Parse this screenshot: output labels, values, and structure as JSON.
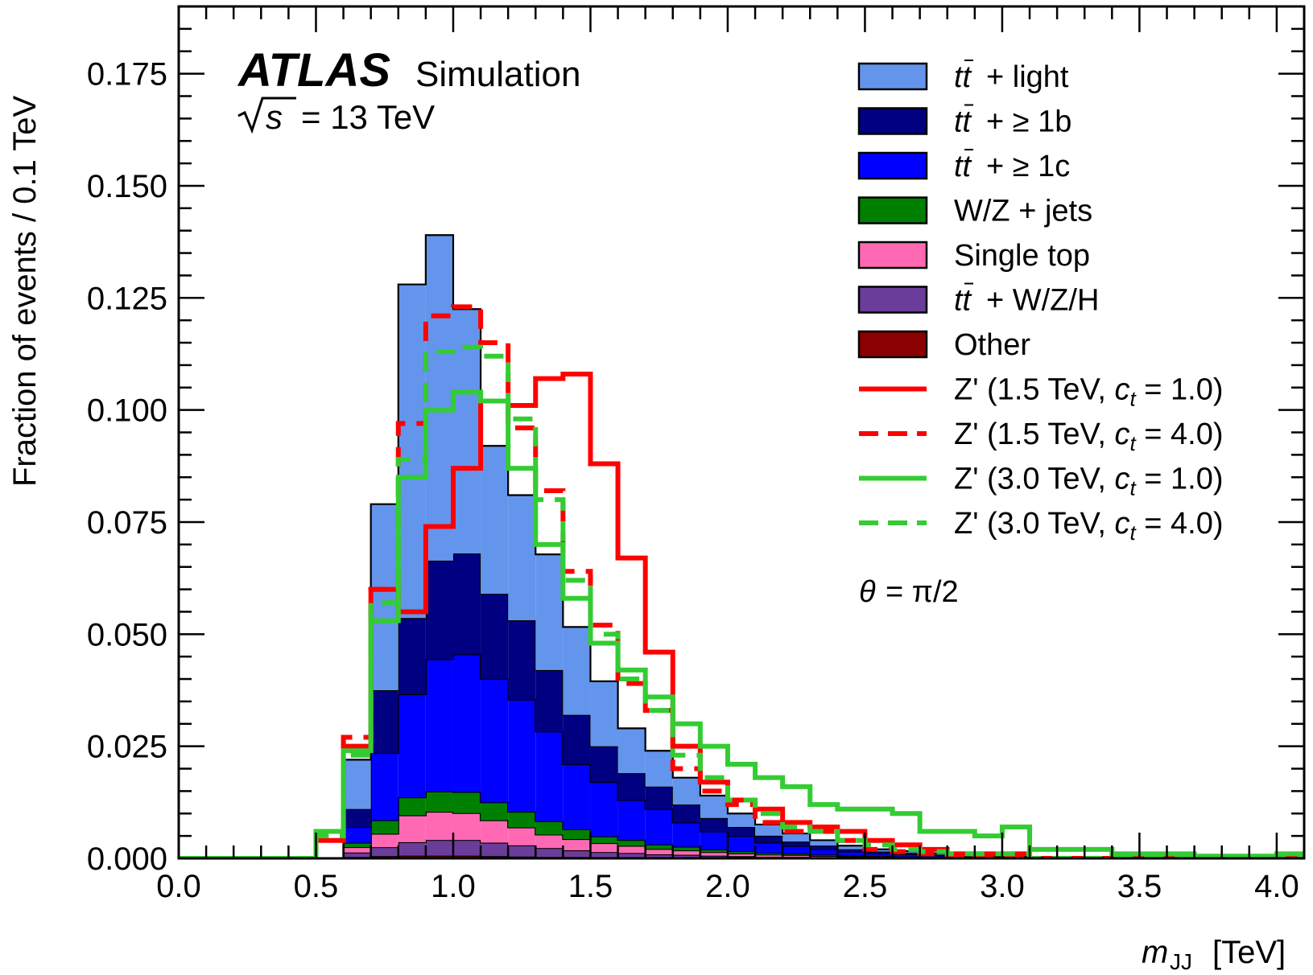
{
  "chart_data": {
    "type": "histogram-stacked",
    "experiment": "ATLAS",
    "experiment_suffix": "Simulation",
    "energy": {
      "s_symbol": "s",
      "text": "= 13 TeV"
    },
    "annotation": {
      "theta": "θ",
      "text": "= π/2"
    },
    "xlabel": {
      "var": "m",
      "sub": "JJ",
      "unit": "[TeV]"
    },
    "ylabel": "Fraction of events / 0.1 TeV",
    "xlim": [
      0.0,
      4.1
    ],
    "ylim": [
      0.0,
      0.19
    ],
    "xticks": [
      0.0,
      0.5,
      1.0,
      1.5,
      2.0,
      2.5,
      3.0,
      3.5,
      4.0
    ],
    "xtick_labels": [
      "0.0",
      "0.5",
      "1.0",
      "1.5",
      "2.0",
      "2.5",
      "3.0",
      "3.5",
      "4.0"
    ],
    "yticks": [
      0.0,
      0.025,
      0.05,
      0.075,
      0.1,
      0.125,
      0.15,
      0.175
    ],
    "ytick_labels": [
      "0.000",
      "0.025",
      "0.050",
      "0.075",
      "0.100",
      "0.125",
      "0.150",
      "0.175"
    ],
    "bin_edges": [
      0.0,
      0.1,
      0.2,
      0.3,
      0.4,
      0.5,
      0.6,
      0.7,
      0.8,
      0.9,
      1.0,
      1.1,
      1.2,
      1.3,
      1.4,
      1.5,
      1.6,
      1.7,
      1.8,
      1.9,
      2.0,
      2.1,
      2.2,
      2.3,
      2.4,
      2.5,
      2.6,
      2.7,
      2.8,
      2.9,
      3.0,
      3.1,
      3.2,
      3.3,
      3.4,
      3.5,
      3.6,
      3.7,
      3.8,
      3.9,
      4.0,
      4.1
    ],
    "stacked_series": [
      {
        "name": "Other",
        "color": "#8b0000",
        "values": [
          0,
          0,
          0,
          0,
          0,
          0,
          0.0003,
          0.0005,
          0.0006,
          0.0006,
          0.0006,
          0.0005,
          0.0004,
          0.0003,
          0.0003,
          0.0002,
          0.0002,
          0.0001,
          0.0001,
          0.0001,
          0.0001,
          5e-05,
          5e-05,
          5e-05,
          3e-05,
          3e-05,
          2e-05,
          2e-05,
          2e-05,
          1e-05,
          1e-05,
          0,
          0,
          0,
          0,
          0,
          0,
          0,
          0,
          0,
          0
        ]
      },
      {
        "name": "t̄t + W/Z/H",
        "color": "#6a3d9a",
        "values": [
          0,
          0,
          0,
          0,
          0,
          0,
          0.001,
          0.002,
          0.003,
          0.0035,
          0.0035,
          0.003,
          0.0025,
          0.002,
          0.0015,
          0.0012,
          0.001,
          0.0008,
          0.0007,
          0.0005,
          0.0004,
          0.0003,
          0.0003,
          0.0002,
          0.0002,
          0.0001,
          0.0001,
          0.0001,
          0.0001,
          0.0001,
          5e-05,
          0,
          0,
          0,
          0,
          0,
          0,
          0,
          0,
          0,
          0
        ]
      },
      {
        "name": "Single top",
        "color": "#ff69b4",
        "values": [
          0,
          0,
          0,
          0,
          0,
          0,
          0.0012,
          0.003,
          0.006,
          0.0063,
          0.006,
          0.005,
          0.004,
          0.003,
          0.0025,
          0.002,
          0.0016,
          0.0012,
          0.001,
          0.0008,
          0.0006,
          0.0005,
          0.0004,
          0.0003,
          0.0002,
          0.0002,
          0.0002,
          0.0001,
          0.0001,
          0.0001,
          5e-05,
          0,
          0,
          0,
          0,
          0,
          0,
          0,
          0,
          0,
          0
        ]
      },
      {
        "name": "W/Z + jets",
        "color": "#008000",
        "values": [
          0,
          0,
          0,
          0,
          0,
          0,
          0.001,
          0.003,
          0.004,
          0.0045,
          0.0047,
          0.004,
          0.0035,
          0.003,
          0.0022,
          0.0015,
          0.0013,
          0.001,
          0.0008,
          0.0006,
          0.0005,
          0.0004,
          0.0003,
          0.0003,
          0.0002,
          0.0002,
          0.0001,
          0.0001,
          0.0001,
          0.0001,
          5e-05,
          0,
          0,
          0,
          0,
          0,
          0,
          0,
          0,
          0,
          0
        ]
      },
      {
        "name": "t̄t + ≥ 1c",
        "color": "#0000ff",
        "values": [
          0,
          0,
          0,
          0,
          0,
          0,
          0.0035,
          0.015,
          0.023,
          0.0295,
          0.0307,
          0.0275,
          0.025,
          0.02,
          0.0145,
          0.0121,
          0.0089,
          0.0079,
          0.0054,
          0.004,
          0.0034,
          0.0023,
          0.0017,
          0.0012,
          0.0009,
          0.0006,
          0.0005,
          0.0003,
          0.0002,
          0.0001,
          0.0001,
          0,
          0,
          0,
          0,
          0,
          0,
          0,
          0,
          0,
          0
        ]
      },
      {
        "name": "t̄t + ≥ 1b",
        "color": "#000080",
        "values": [
          0,
          0,
          0,
          0,
          0,
          0,
          0.004,
          0.014,
          0.017,
          0.022,
          0.0225,
          0.019,
          0.0177,
          0.0137,
          0.011,
          0.008,
          0.006,
          0.005,
          0.004,
          0.003,
          0.002,
          0.0015,
          0.001,
          0.0008,
          0.0005,
          0.0004,
          0.0003,
          0.0002,
          0.0002,
          0.0001,
          0.0001,
          0,
          0,
          0,
          0,
          0,
          0,
          0,
          0,
          0,
          0
        ]
      },
      {
        "name": "t̄t + light",
        "color": "#6495ed",
        "values": [
          0,
          0,
          0,
          0,
          0,
          0,
          0.011,
          0.0415,
          0.0744,
          0.0726,
          0.0545,
          0.033,
          0.0279,
          0.0258,
          0.0196,
          0.0145,
          0.01,
          0.008,
          0.006,
          0.005,
          0.003,
          0.0025,
          0.0018,
          0.0012,
          0.0008,
          0.0005,
          0.0004,
          0.0003,
          0.0002,
          0.0001,
          0.0001,
          0,
          0,
          0,
          0,
          0,
          0,
          0,
          0,
          0,
          0
        ]
      }
    ],
    "line_series": [
      {
        "name": "Z' (1.5 TeV, c_t = 1.0)",
        "mass": "1.5",
        "ct": "1.0",
        "color": "#ff0000",
        "dashed": false,
        "values": [
          0,
          0,
          0,
          0,
          0,
          0.004,
          0.025,
          0.06,
          0.055,
          0.074,
          0.087,
          0.102,
          0.101,
          0.107,
          0.108,
          0.088,
          0.067,
          0.046,
          0.025,
          0.017,
          0.013,
          0.011,
          0.008,
          0.007,
          0.006,
          0.004,
          0.003,
          0.002,
          0.001,
          0.001,
          0.001,
          0,
          0,
          0,
          0,
          0,
          0,
          0,
          0,
          0,
          0
        ]
      },
      {
        "name": "Z' (1.5 TeV, c_t = 4.0)",
        "mass": "1.5",
        "ct": "4.0",
        "color": "#ff0000",
        "dashed": true,
        "values": [
          0,
          0,
          0,
          0,
          0,
          0.005,
          0.027,
          0.06,
          0.097,
          0.121,
          0.123,
          0.115,
          0.096,
          0.082,
          0.064,
          0.052,
          0.039,
          0.033,
          0.02,
          0.015,
          0.012,
          0.008,
          0.006,
          0.006,
          0.004,
          0.002,
          0.0015,
          0.001,
          0.0008,
          0.0005,
          0.0005,
          0,
          0,
          0,
          0,
          0,
          0,
          0,
          0,
          0,
          0
        ]
      },
      {
        "name": "Z' (3.0 TeV, c_t = 1.0)",
        "mass": "3.0",
        "ct": "1.0",
        "color": "#33cc33",
        "dashed": false,
        "values": [
          0,
          0,
          0,
          0,
          0,
          0.006,
          0.024,
          0.053,
          0.085,
          0.1,
          0.104,
          0.102,
          0.087,
          0.07,
          0.058,
          0.048,
          0.042,
          0.036,
          0.03,
          0.025,
          0.021,
          0.018,
          0.016,
          0.012,
          0.011,
          0.011,
          0.01,
          0.006,
          0.006,
          0.005,
          0.007,
          0.002,
          0.002,
          0.002,
          0.001,
          0.001,
          0.001,
          0.0005,
          0.0005,
          0.0005,
          0.001
        ]
      },
      {
        "name": "Z' (3.0 TeV, c_t = 4.0)",
        "mass": "3.0",
        "ct": "4.0",
        "color": "#33cc33",
        "dashed": true,
        "values": [
          0,
          0,
          0,
          0,
          0,
          0.005,
          0.023,
          0.057,
          0.089,
          0.113,
          0.114,
          0.112,
          0.098,
          0.08,
          0.062,
          0.05,
          0.04,
          0.033,
          0.023,
          0.018,
          0.013,
          0.01,
          0.007,
          0.006,
          0.004,
          0.003,
          0.002,
          0.0015,
          0.001,
          0.001,
          0.001,
          0,
          0,
          0,
          0,
          0,
          0,
          0,
          0,
          0,
          0
        ]
      }
    ],
    "legend": {
      "placement": "top-right",
      "items": [
        {
          "kind": "fill",
          "color": "#6495ed",
          "prefix": "tt",
          "label": "+ light"
        },
        {
          "kind": "fill",
          "color": "#000080",
          "prefix": "tt",
          "label": "+  ≥ 1b"
        },
        {
          "kind": "fill",
          "color": "#0000ff",
          "prefix": "tt",
          "label": "+  ≥ 1c"
        },
        {
          "kind": "fill",
          "color": "#008000",
          "prefix": "",
          "label": "W/Z + jets"
        },
        {
          "kind": "fill",
          "color": "#ff69b4",
          "prefix": "",
          "label": "Single top"
        },
        {
          "kind": "fill",
          "color": "#6a3d9a",
          "prefix": "tt",
          "label": "+ W/Z/H"
        },
        {
          "kind": "fill",
          "color": "#8b0000",
          "prefix": "",
          "label": "Other"
        },
        {
          "kind": "line",
          "color": "#ff0000",
          "dashed": false,
          "label_pre": "Z' (1.5 TeV, ",
          "c": "c",
          "t": "t",
          "label_post": " = 1.0)"
        },
        {
          "kind": "line",
          "color": "#ff0000",
          "dashed": true,
          "label_pre": "Z' (1.5 TeV, ",
          "c": "c",
          "t": "t",
          "label_post": " = 4.0)"
        },
        {
          "kind": "line",
          "color": "#33cc33",
          "dashed": false,
          "label_pre": "Z' (3.0 TeV, ",
          "c": "c",
          "t": "t",
          "label_post": " = 1.0)"
        },
        {
          "kind": "line",
          "color": "#33cc33",
          "dashed": true,
          "label_pre": "Z' (3.0 TeV, ",
          "c": "c",
          "t": "t",
          "label_post": " = 4.0)"
        }
      ]
    }
  }
}
